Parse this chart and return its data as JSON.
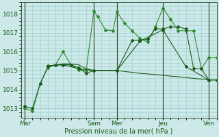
{
  "background_color": "#cce8e8",
  "grid_color": "#99cccc",
  "line_color_dark": "#1a5c1a",
  "line_color_mid": "#2d8b2d",
  "xlabel": "Pression niveau de la mer( hPa )",
  "ylim": [
    1012.5,
    1018.6
  ],
  "yticks": [
    1013,
    1014,
    1015,
    1016,
    1017,
    1018
  ],
  "xlim": [
    -2,
    100
  ],
  "day_labels": [
    "Mar",
    "Sam",
    "Mer",
    "Jeu",
    "Ven"
  ],
  "day_positions": [
    0,
    36,
    48,
    72,
    96
  ],
  "series1_x": [
    0,
    4,
    8,
    12,
    16,
    20,
    24,
    28,
    32,
    36,
    38,
    42,
    46,
    48,
    52,
    56,
    60,
    64,
    68,
    72,
    76,
    80,
    84,
    88,
    92,
    96,
    100
  ],
  "series1_y": [
    1013.0,
    1012.85,
    1014.3,
    1015.15,
    1015.3,
    1016.0,
    1015.3,
    1015.05,
    1015.0,
    1018.15,
    1017.85,
    1017.15,
    1017.1,
    1018.1,
    1017.5,
    1017.1,
    1016.7,
    1016.5,
    1017.3,
    1018.3,
    1017.7,
    1017.1,
    1017.1,
    1017.1,
    1015.1,
    1015.7,
    1015.7
  ],
  "series2_x": [
    0,
    4,
    8,
    12,
    16,
    20,
    24,
    28,
    32,
    36,
    48,
    56,
    60,
    64,
    68,
    72,
    76,
    80,
    84,
    88,
    92,
    96,
    100
  ],
  "series2_y": [
    1013.1,
    1013.0,
    1014.3,
    1015.2,
    1015.3,
    1015.3,
    1015.3,
    1015.15,
    1014.85,
    1015.0,
    1015.0,
    1016.6,
    1016.6,
    1016.65,
    1017.2,
    1017.2,
    1017.3,
    1017.3,
    1017.2,
    1015.1,
    1015.1,
    1014.5,
    1014.5
  ],
  "series3_x": [
    12,
    16,
    20,
    24,
    28,
    32,
    36,
    48,
    56,
    60,
    64,
    68,
    72,
    76,
    80,
    84,
    88,
    92,
    96,
    100
  ],
  "series3_y": [
    1015.2,
    1015.3,
    1015.35,
    1015.35,
    1015.3,
    1015.1,
    1015.0,
    1015.0,
    1014.9,
    1014.85,
    1014.82,
    1014.78,
    1014.75,
    1014.7,
    1014.67,
    1014.63,
    1014.58,
    1014.55,
    1014.5,
    1014.5
  ],
  "series4_x": [
    12,
    20,
    28,
    36,
    48,
    60,
    72,
    84,
    96
  ],
  "series4_y": [
    1015.25,
    1015.3,
    1015.1,
    1015.0,
    1015.0,
    1016.55,
    1017.15,
    1015.2,
    1014.5
  ]
}
